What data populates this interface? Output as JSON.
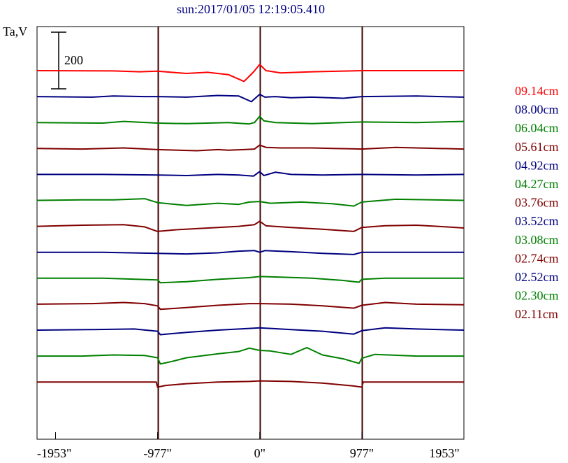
{
  "chart_data": {
    "type": "line",
    "title": "sun:2017/01/05 12:19:05.410",
    "ylabel": "Ta,V",
    "scale_bar_label": "200",
    "xlim": [
      -2130,
      1953
    ],
    "x_ticks": [
      {
        "value": -1953,
        "label": "-1953\""
      },
      {
        "value": -977,
        "label": "-977\""
      },
      {
        "value": 0,
        "label": "0\""
      },
      {
        "value": 977,
        "label": "977\""
      },
      {
        "value": 1953,
        "label": "1953\""
      }
    ],
    "vertical_lines": [
      -977,
      0,
      977
    ],
    "colors": {
      "title": "#000080",
      "red": "#ff0000",
      "blue": "#000080",
      "green": "#008000",
      "maroon": "#800000",
      "frame": "#000000",
      "limb_line": "#400000"
    },
    "series": [
      {
        "name": "09.14cm",
        "color": "#ff0000",
        "points": [
          [
            -2130,
            0
          ],
          [
            -1400,
            -1
          ],
          [
            -1150,
            -4
          ],
          [
            -977,
            -2
          ],
          [
            -700,
            -10
          ],
          [
            -500,
            -6
          ],
          [
            -300,
            -14
          ],
          [
            -150,
            -38
          ],
          [
            -60,
            -5
          ],
          [
            0,
            22
          ],
          [
            60,
            0
          ],
          [
            200,
            -8
          ],
          [
            500,
            -4
          ],
          [
            977,
            0
          ],
          [
            1500,
            0
          ],
          [
            1953,
            0
          ]
        ]
      },
      {
        "name": "08.00cm",
        "color": "#000080",
        "points": [
          [
            -2130,
            0
          ],
          [
            -1600,
            -2
          ],
          [
            -1400,
            2
          ],
          [
            -1100,
            0
          ],
          [
            -977,
            0
          ],
          [
            -700,
            -2
          ],
          [
            -400,
            4
          ],
          [
            -200,
            2
          ],
          [
            -80,
            -18
          ],
          [
            0,
            8
          ],
          [
            50,
            -2
          ],
          [
            150,
            0
          ],
          [
            300,
            -4
          ],
          [
            500,
            -2
          ],
          [
            800,
            -6
          ],
          [
            977,
            0
          ],
          [
            1500,
            2
          ],
          [
            1953,
            -2
          ]
        ]
      },
      {
        "name": "06.04cm",
        "color": "#008000",
        "points": [
          [
            -2130,
            0
          ],
          [
            -1500,
            -2
          ],
          [
            -1300,
            4
          ],
          [
            -977,
            -2
          ],
          [
            -700,
            -4
          ],
          [
            -300,
            0
          ],
          [
            -100,
            -5
          ],
          [
            -50,
            0
          ],
          [
            0,
            22
          ],
          [
            40,
            6
          ],
          [
            150,
            0
          ],
          [
            500,
            -4
          ],
          [
            800,
            0
          ],
          [
            977,
            2
          ],
          [
            1500,
            0
          ],
          [
            1953,
            4
          ]
        ]
      },
      {
        "name": "05.61cm",
        "color": "#800000",
        "points": [
          [
            -2130,
            0
          ],
          [
            -1700,
            -2
          ],
          [
            -1300,
            2
          ],
          [
            -1200,
            0
          ],
          [
            -977,
            -4
          ],
          [
            -600,
            -8
          ],
          [
            -400,
            -4
          ],
          [
            -300,
            -6
          ],
          [
            -150,
            -4
          ],
          [
            -50,
            -2
          ],
          [
            0,
            12
          ],
          [
            60,
            4
          ],
          [
            200,
            2
          ],
          [
            500,
            2
          ],
          [
            700,
            0
          ],
          [
            977,
            -2
          ],
          [
            1300,
            4
          ],
          [
            1500,
            2
          ],
          [
            1953,
            -2
          ]
        ]
      },
      {
        "name": "04.92cm",
        "color": "#000080",
        "points": [
          [
            -2130,
            0
          ],
          [
            -1500,
            0
          ],
          [
            -977,
            -2
          ],
          [
            -700,
            -4
          ],
          [
            -400,
            0
          ],
          [
            -200,
            -2
          ],
          [
            -60,
            -6
          ],
          [
            0,
            10
          ],
          [
            40,
            -4
          ],
          [
            150,
            8
          ],
          [
            300,
            0
          ],
          [
            600,
            -2
          ],
          [
            977,
            0
          ],
          [
            1500,
            -2
          ],
          [
            1953,
            0
          ]
        ]
      },
      {
        "name": "04.27cm",
        "color": "#008000",
        "points": [
          [
            -2130,
            0
          ],
          [
            -1700,
            2
          ],
          [
            -1400,
            2
          ],
          [
            -1100,
            6
          ],
          [
            -977,
            -8
          ],
          [
            -700,
            -18
          ],
          [
            -400,
            -10
          ],
          [
            -200,
            -14
          ],
          [
            -100,
            -6
          ],
          [
            0,
            -4
          ],
          [
            100,
            -10
          ],
          [
            400,
            -6
          ],
          [
            700,
            -12
          ],
          [
            900,
            -20
          ],
          [
            977,
            -6
          ],
          [
            1300,
            4
          ],
          [
            1953,
            0
          ]
        ]
      },
      {
        "name": "03.76cm",
        "color": "#800000",
        "points": [
          [
            -2130,
            0
          ],
          [
            -1700,
            4
          ],
          [
            -1300,
            6
          ],
          [
            -1100,
            -2
          ],
          [
            -977,
            -18
          ],
          [
            -800,
            -12
          ],
          [
            -400,
            -4
          ],
          [
            -200,
            0
          ],
          [
            -50,
            6
          ],
          [
            0,
            18
          ],
          [
            60,
            2
          ],
          [
            300,
            -4
          ],
          [
            600,
            -10
          ],
          [
            900,
            -18
          ],
          [
            977,
            -4
          ],
          [
            1200,
            2
          ],
          [
            1500,
            4
          ],
          [
            1700,
            0
          ],
          [
            1953,
            -6
          ]
        ]
      },
      {
        "name": "03.52cm",
        "color": "#000080",
        "points": [
          [
            -2130,
            0
          ],
          [
            -1500,
            0
          ],
          [
            -977,
            -4
          ],
          [
            -700,
            -6
          ],
          [
            -400,
            -2
          ],
          [
            -200,
            4
          ],
          [
            -50,
            6
          ],
          [
            0,
            0
          ],
          [
            50,
            6
          ],
          [
            300,
            2
          ],
          [
            600,
            -4
          ],
          [
            900,
            -8
          ],
          [
            977,
            0
          ],
          [
            1500,
            0
          ],
          [
            1953,
            0
          ]
        ]
      },
      {
        "name": "03.08cm",
        "color": "#008000",
        "points": [
          [
            -2130,
            0
          ],
          [
            -1500,
            0
          ],
          [
            -977,
            -6
          ],
          [
            -950,
            -16
          ],
          [
            -700,
            -12
          ],
          [
            -400,
            -4
          ],
          [
            -100,
            2
          ],
          [
            0,
            6
          ],
          [
            200,
            4
          ],
          [
            500,
            0
          ],
          [
            800,
            -8
          ],
          [
            950,
            -14
          ],
          [
            977,
            -4
          ],
          [
            1200,
            0
          ],
          [
            1953,
            0
          ]
        ]
      },
      {
        "name": "02.74cm",
        "color": "#800000",
        "points": [
          [
            -2130,
            0
          ],
          [
            -1600,
            2
          ],
          [
            -1300,
            6
          ],
          [
            -1100,
            2
          ],
          [
            -977,
            -6
          ],
          [
            -950,
            -18
          ],
          [
            -700,
            -12
          ],
          [
            -400,
            -4
          ],
          [
            -100,
            2
          ],
          [
            0,
            2
          ],
          [
            300,
            0
          ],
          [
            600,
            -6
          ],
          [
            900,
            -14
          ],
          [
            977,
            -4
          ],
          [
            1200,
            6
          ],
          [
            1500,
            0
          ],
          [
            1953,
            -2
          ]
        ]
      },
      {
        "name": "02.52cm",
        "color": "#000080",
        "points": [
          [
            -2130,
            0
          ],
          [
            -1600,
            2
          ],
          [
            -1200,
            4
          ],
          [
            -977,
            -4
          ],
          [
            -950,
            -16
          ],
          [
            -700,
            -8
          ],
          [
            -400,
            0
          ],
          [
            -100,
            6
          ],
          [
            0,
            8
          ],
          [
            300,
            2
          ],
          [
            600,
            -4
          ],
          [
            900,
            -14
          ],
          [
            977,
            -2
          ],
          [
            1200,
            8
          ],
          [
            1500,
            4
          ],
          [
            1953,
            0
          ]
        ]
      },
      {
        "name": "02.30cm",
        "color": "#008000",
        "points": [
          [
            -2130,
            0
          ],
          [
            -1700,
            0
          ],
          [
            -1400,
            4
          ],
          [
            -1100,
            2
          ],
          [
            -977,
            -6
          ],
          [
            -950,
            -28
          ],
          [
            -850,
            -20
          ],
          [
            -700,
            -6
          ],
          [
            -400,
            8
          ],
          [
            -200,
            16
          ],
          [
            -100,
            28
          ],
          [
            0,
            20
          ],
          [
            100,
            18
          ],
          [
            300,
            6
          ],
          [
            450,
            30
          ],
          [
            600,
            4
          ],
          [
            800,
            -10
          ],
          [
            950,
            -26
          ],
          [
            977,
            -8
          ],
          [
            1100,
            6
          ],
          [
            1500,
            0
          ],
          [
            1953,
            0
          ]
        ]
      },
      {
        "name": "02.11cm",
        "color": "#800000",
        "points": [
          [
            -2130,
            0
          ],
          [
            -1200,
            0
          ],
          [
            -990,
            0
          ],
          [
            -977,
            -18
          ],
          [
            -900,
            -12
          ],
          [
            -700,
            -6
          ],
          [
            -400,
            0
          ],
          [
            -100,
            2
          ],
          [
            0,
            4
          ],
          [
            300,
            2
          ],
          [
            600,
            -4
          ],
          [
            900,
            -14
          ],
          [
            977,
            -18
          ],
          [
            990,
            0
          ],
          [
            1953,
            0
          ]
        ]
      }
    ]
  }
}
